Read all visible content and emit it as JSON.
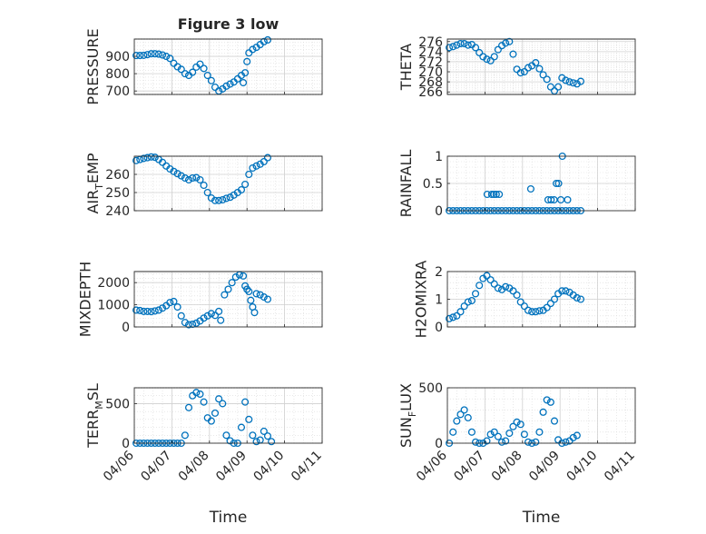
{
  "chart_data": [
    {
      "type": "scatter",
      "title": "Figure 3 low",
      "ylabel": "PRESSURE",
      "ylim": [
        680,
        1000
      ],
      "yticks": [
        700,
        800,
        900
      ],
      "xlim": [
        "04/06",
        "04/11"
      ],
      "grid": true,
      "points": [
        [
          0.05,
          905
        ],
        [
          0.15,
          905
        ],
        [
          0.25,
          906
        ],
        [
          0.35,
          910
        ],
        [
          0.45,
          915
        ],
        [
          0.55,
          915
        ],
        [
          0.65,
          913
        ],
        [
          0.75,
          908
        ],
        [
          0.85,
          900
        ],
        [
          0.95,
          888
        ],
        [
          1.05,
          860
        ],
        [
          1.15,
          840
        ],
        [
          1.25,
          825
        ],
        [
          1.35,
          800
        ],
        [
          1.45,
          790
        ],
        [
          1.55,
          808
        ],
        [
          1.65,
          838
        ],
        [
          1.75,
          855
        ],
        [
          1.85,
          830
        ],
        [
          1.95,
          790
        ],
        [
          2.05,
          760
        ],
        [
          2.15,
          722
        ],
        [
          2.25,
          700
        ],
        [
          2.35,
          712
        ],
        [
          2.45,
          728
        ],
        [
          2.55,
          740
        ],
        [
          2.65,
          752
        ],
        [
          2.75,
          770
        ],
        [
          2.85,
          790
        ],
        [
          2.9,
          748
        ],
        [
          2.95,
          805
        ],
        [
          3.0,
          870
        ],
        [
          3.05,
          920
        ],
        [
          3.15,
          940
        ],
        [
          3.25,
          952
        ],
        [
          3.35,
          968
        ],
        [
          3.45,
          985
        ],
        [
          3.55,
          995
        ]
      ]
    },
    {
      "type": "scatter",
      "ylabel": "THETA",
      "ylim": [
        265.5,
        276.5
      ],
      "yticks": [
        266,
        268,
        270,
        272,
        274,
        276
      ],
      "xlim": [
        "04/06",
        "04/11"
      ],
      "grid": true,
      "points": [
        [
          0.05,
          274.8
        ],
        [
          0.15,
          275.0
        ],
        [
          0.25,
          275.3
        ],
        [
          0.35,
          275.6
        ],
        [
          0.45,
          275.6
        ],
        [
          0.55,
          275.3
        ],
        [
          0.65,
          275.4
        ],
        [
          0.75,
          274.8
        ],
        [
          0.85,
          273.8
        ],
        [
          0.95,
          273.0
        ],
        [
          1.05,
          272.5
        ],
        [
          1.15,
          272.2
        ],
        [
          1.25,
          273.0
        ],
        [
          1.35,
          274.4
        ],
        [
          1.45,
          275.2
        ],
        [
          1.55,
          275.7
        ],
        [
          1.65,
          276.0
        ],
        [
          1.75,
          273.5
        ],
        [
          1.85,
          270.5
        ],
        [
          1.95,
          269.8
        ],
        [
          2.05,
          270.0
        ],
        [
          2.15,
          270.8
        ],
        [
          2.25,
          271.2
        ],
        [
          2.35,
          271.8
        ],
        [
          2.45,
          270.6
        ],
        [
          2.55,
          269.4
        ],
        [
          2.65,
          268.5
        ],
        [
          2.75,
          267.0
        ],
        [
          2.85,
          266.2
        ],
        [
          2.95,
          267.0
        ],
        [
          3.05,
          268.8
        ],
        [
          3.15,
          268.3
        ],
        [
          3.25,
          268.0
        ],
        [
          3.35,
          267.8
        ],
        [
          3.45,
          267.6
        ],
        [
          3.55,
          268.1
        ]
      ]
    },
    {
      "type": "scatter",
      "ylabel": "AIR_TEMP",
      "ylim": [
        240,
        270
      ],
      "yticks": [
        240,
        250,
        260
      ],
      "xlim": [
        "04/06",
        "04/11"
      ],
      "grid": true,
      "points": [
        [
          0.05,
          267.6
        ],
        [
          0.15,
          268.2
        ],
        [
          0.25,
          268.8
        ],
        [
          0.35,
          269.2
        ],
        [
          0.45,
          269.6
        ],
        [
          0.55,
          269.4
        ],
        [
          0.65,
          268.2
        ],
        [
          0.75,
          266.6
        ],
        [
          0.85,
          264.6
        ],
        [
          0.95,
          263.0
        ],
        [
          1.05,
          261.6
        ],
        [
          1.15,
          260.4
        ],
        [
          1.25,
          259.2
        ],
        [
          1.35,
          258.0
        ],
        [
          1.45,
          257.0
        ],
        [
          1.55,
          258.0
        ],
        [
          1.65,
          258.2
        ],
        [
          1.75,
          257.0
        ],
        [
          1.85,
          254.0
        ],
        [
          1.95,
          250.0
        ],
        [
          2.05,
          247.0
        ],
        [
          2.15,
          245.6
        ],
        [
          2.25,
          245.6
        ],
        [
          2.35,
          246.0
        ],
        [
          2.45,
          246.8
        ],
        [
          2.55,
          247.4
        ],
        [
          2.65,
          248.6
        ],
        [
          2.75,
          250.0
        ],
        [
          2.85,
          251.5
        ],
        [
          2.95,
          254.5
        ],
        [
          3.05,
          260.0
        ],
        [
          3.15,
          263.5
        ],
        [
          3.25,
          264.6
        ],
        [
          3.35,
          265.6
        ],
        [
          3.45,
          267.0
        ],
        [
          3.55,
          269.2
        ]
      ]
    },
    {
      "type": "scatter",
      "ylabel": "RAINFALL",
      "ylim": [
        0,
        1
      ],
      "yticks": [
        0,
        0.5,
        1
      ],
      "xlim": [
        "04/06",
        "04/11"
      ],
      "grid": true,
      "points": [
        [
          0.05,
          0
        ],
        [
          0.15,
          0
        ],
        [
          0.25,
          0
        ],
        [
          0.35,
          0
        ],
        [
          0.45,
          0
        ],
        [
          0.55,
          0
        ],
        [
          0.65,
          0
        ],
        [
          0.75,
          0
        ],
        [
          0.85,
          0
        ],
        [
          0.95,
          0
        ],
        [
          1.05,
          0
        ],
        [
          1.15,
          0
        ],
        [
          1.25,
          0
        ],
        [
          1.35,
          0
        ],
        [
          1.45,
          0
        ],
        [
          1.55,
          0
        ],
        [
          1.65,
          0
        ],
        [
          1.75,
          0
        ],
        [
          1.85,
          0
        ],
        [
          1.95,
          0
        ],
        [
          2.05,
          0
        ],
        [
          2.15,
          0
        ],
        [
          2.25,
          0
        ],
        [
          2.35,
          0
        ],
        [
          2.45,
          0
        ],
        [
          2.55,
          0
        ],
        [
          2.65,
          0
        ],
        [
          2.75,
          0
        ],
        [
          2.85,
          0
        ],
        [
          2.95,
          0
        ],
        [
          3.05,
          0
        ],
        [
          3.15,
          0
        ],
        [
          3.25,
          0
        ],
        [
          3.35,
          0
        ],
        [
          3.45,
          0
        ],
        [
          3.55,
          0
        ],
        [
          1.06,
          0.3
        ],
        [
          1.18,
          0.3
        ],
        [
          1.24,
          0.3
        ],
        [
          1.3,
          0.3
        ],
        [
          1.38,
          0.3
        ],
        [
          2.22,
          0.4
        ],
        [
          2.68,
          0.2
        ],
        [
          2.76,
          0.2
        ],
        [
          2.84,
          0.2
        ],
        [
          2.9,
          0.5
        ],
        [
          2.96,
          0.5
        ],
        [
          3.02,
          0.2
        ],
        [
          3.06,
          1.0
        ],
        [
          3.2,
          0.2
        ]
      ]
    },
    {
      "type": "scatter",
      "ylabel": "MIXDEPTH",
      "ylim": [
        0,
        2500
      ],
      "yticks": [
        0,
        1000,
        2000
      ],
      "xlim": [
        "04/06",
        "04/11"
      ],
      "grid": true,
      "points": [
        [
          0.05,
          760
        ],
        [
          0.15,
          740
        ],
        [
          0.25,
          700
        ],
        [
          0.35,
          700
        ],
        [
          0.45,
          690
        ],
        [
          0.55,
          720
        ],
        [
          0.65,
          760
        ],
        [
          0.75,
          850
        ],
        [
          0.85,
          960
        ],
        [
          0.95,
          1100
        ],
        [
          1.05,
          1150
        ],
        [
          1.15,
          900
        ],
        [
          1.25,
          500
        ],
        [
          1.35,
          200
        ],
        [
          1.45,
          100
        ],
        [
          1.55,
          120
        ],
        [
          1.65,
          170
        ],
        [
          1.75,
          270
        ],
        [
          1.85,
          400
        ],
        [
          1.95,
          500
        ],
        [
          2.05,
          600
        ],
        [
          2.15,
          520
        ],
        [
          2.25,
          700
        ],
        [
          2.3,
          300
        ],
        [
          2.4,
          1450
        ],
        [
          2.5,
          1700
        ],
        [
          2.6,
          2000
        ],
        [
          2.7,
          2250
        ],
        [
          2.8,
          2350
        ],
        [
          2.9,
          2300
        ],
        [
          2.95,
          1850
        ],
        [
          3.0,
          1700
        ],
        [
          3.05,
          1600
        ],
        [
          3.1,
          1200
        ],
        [
          3.15,
          900
        ],
        [
          3.2,
          650
        ],
        [
          3.25,
          1500
        ],
        [
          3.35,
          1450
        ],
        [
          3.45,
          1350
        ],
        [
          3.55,
          1250
        ]
      ]
    },
    {
      "type": "scatter",
      "ylabel": "H2OMIXRA",
      "ylim": [
        0,
        2
      ],
      "yticks": [
        0,
        1,
        2
      ],
      "xlim": [
        "04/06",
        "04/11"
      ],
      "grid": true,
      "points": [
        [
          0.05,
          0.3
        ],
        [
          0.15,
          0.35
        ],
        [
          0.25,
          0.4
        ],
        [
          0.35,
          0.55
        ],
        [
          0.45,
          0.75
        ],
        [
          0.55,
          0.9
        ],
        [
          0.65,
          0.95
        ],
        [
          0.75,
          1.2
        ],
        [
          0.85,
          1.5
        ],
        [
          0.95,
          1.75
        ],
        [
          1.05,
          1.85
        ],
        [
          1.15,
          1.7
        ],
        [
          1.25,
          1.55
        ],
        [
          1.35,
          1.4
        ],
        [
          1.45,
          1.35
        ],
        [
          1.55,
          1.45
        ],
        [
          1.65,
          1.4
        ],
        [
          1.75,
          1.3
        ],
        [
          1.85,
          1.15
        ],
        [
          1.95,
          0.9
        ],
        [
          2.05,
          0.75
        ],
        [
          2.15,
          0.6
        ],
        [
          2.25,
          0.55
        ],
        [
          2.35,
          0.55
        ],
        [
          2.45,
          0.58
        ],
        [
          2.55,
          0.6
        ],
        [
          2.65,
          0.7
        ],
        [
          2.75,
          0.85
        ],
        [
          2.85,
          1.0
        ],
        [
          2.95,
          1.2
        ],
        [
          3.05,
          1.3
        ],
        [
          3.15,
          1.3
        ],
        [
          3.25,
          1.25
        ],
        [
          3.35,
          1.15
        ],
        [
          3.45,
          1.05
        ],
        [
          3.55,
          1.0
        ]
      ]
    },
    {
      "type": "scatter",
      "ylabel": "TERR_MSL",
      "ylim": [
        0,
        700
      ],
      "yticks": [
        0,
        500
      ],
      "xlim": [
        "04/06",
        "04/11"
      ],
      "xticks": [
        "04/06",
        "04/07",
        "04/08",
        "04/09",
        "04/10",
        "04/11"
      ],
      "xlabel": "Time",
      "grid": true,
      "points": [
        [
          0.05,
          0
        ],
        [
          0.15,
          0
        ],
        [
          0.25,
          0
        ],
        [
          0.35,
          0
        ],
        [
          0.45,
          0
        ],
        [
          0.55,
          0
        ],
        [
          0.65,
          0
        ],
        [
          0.75,
          0
        ],
        [
          0.85,
          0
        ],
        [
          0.95,
          0
        ],
        [
          1.05,
          0
        ],
        [
          1.15,
          0
        ],
        [
          1.25,
          0
        ],
        [
          1.35,
          100
        ],
        [
          1.45,
          450
        ],
        [
          1.55,
          600
        ],
        [
          1.65,
          640
        ],
        [
          1.75,
          620
        ],
        [
          1.85,
          520
        ],
        [
          1.95,
          320
        ],
        [
          2.05,
          280
        ],
        [
          2.15,
          380
        ],
        [
          2.25,
          560
        ],
        [
          2.35,
          500
        ],
        [
          2.45,
          100
        ],
        [
          2.55,
          30
        ],
        [
          2.65,
          0
        ],
        [
          2.75,
          0
        ],
        [
          2.85,
          200
        ],
        [
          2.95,
          520
        ],
        [
          3.05,
          300
        ],
        [
          3.15,
          100
        ],
        [
          3.25,
          20
        ],
        [
          3.35,
          40
        ],
        [
          3.45,
          150
        ],
        [
          3.55,
          90
        ],
        [
          3.65,
          20
        ]
      ]
    },
    {
      "type": "scatter",
      "ylabel": "SUN_FLUX",
      "ylim": [
        0,
        500
      ],
      "yticks": [
        0,
        500
      ],
      "xlim": [
        "04/06",
        "04/11"
      ],
      "xticks": [
        "04/06",
        "04/07",
        "04/08",
        "04/09",
        "04/10",
        "04/11"
      ],
      "xlabel": "Time",
      "grid": true,
      "points": [
        [
          0.05,
          0
        ],
        [
          0.15,
          100
        ],
        [
          0.25,
          200
        ],
        [
          0.35,
          260
        ],
        [
          0.45,
          300
        ],
        [
          0.55,
          230
        ],
        [
          0.65,
          100
        ],
        [
          0.75,
          10
        ],
        [
          0.85,
          0
        ],
        [
          0.95,
          0
        ],
        [
          1.05,
          20
        ],
        [
          1.15,
          80
        ],
        [
          1.25,
          100
        ],
        [
          1.35,
          60
        ],
        [
          1.45,
          10
        ],
        [
          1.55,
          20
        ],
        [
          1.65,
          90
        ],
        [
          1.75,
          150
        ],
        [
          1.85,
          190
        ],
        [
          1.95,
          170
        ],
        [
          2.05,
          80
        ],
        [
          2.15,
          10
        ],
        [
          2.25,
          0
        ],
        [
          2.35,
          10
        ],
        [
          2.45,
          100
        ],
        [
          2.55,
          280
        ],
        [
          2.65,
          390
        ],
        [
          2.75,
          370
        ],
        [
          2.85,
          200
        ],
        [
          2.95,
          30
        ],
        [
          3.05,
          0
        ],
        [
          3.15,
          10
        ],
        [
          3.25,
          20
        ],
        [
          3.35,
          50
        ],
        [
          3.45,
          70
        ]
      ]
    }
  ]
}
